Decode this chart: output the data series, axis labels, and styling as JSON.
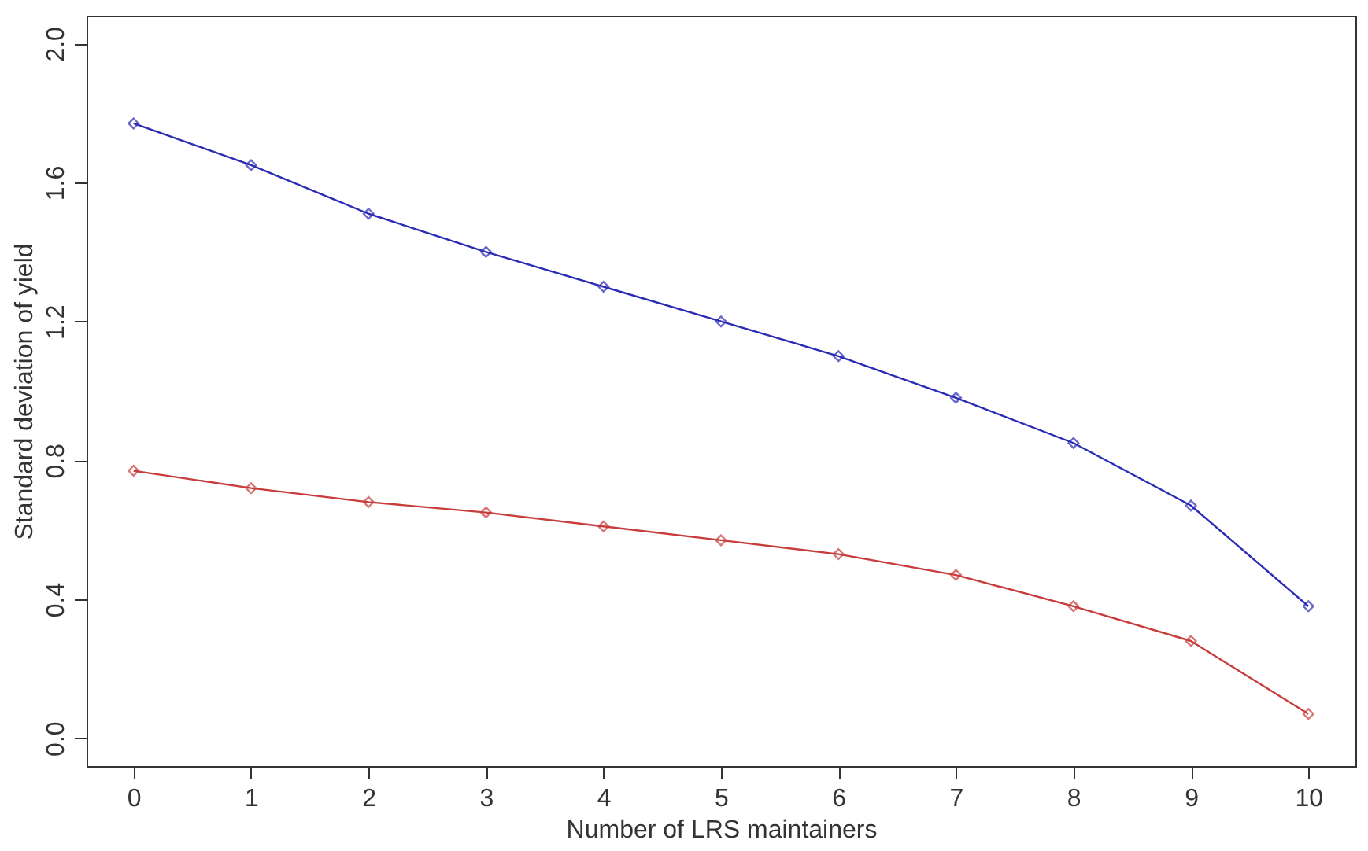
{
  "chart_data": {
    "type": "line",
    "xlabel": "Number of LRS maintainers",
    "ylabel": "Standard deviation of yield",
    "x": [
      0,
      1,
      2,
      3,
      4,
      5,
      6,
      7,
      8,
      9,
      10
    ],
    "series": [
      {
        "color": "#2b2bb5",
        "values": [
          1.77,
          1.65,
          1.51,
          1.4,
          1.3,
          1.2,
          1.1,
          0.98,
          0.85,
          0.67,
          0.38
        ]
      },
      {
        "color": "#c83c3c",
        "values": [
          0.77,
          0.72,
          0.68,
          0.65,
          0.61,
          0.57,
          0.53,
          0.47,
          0.38,
          0.28,
          0.07
        ]
      }
    ],
    "xlim": [
      -0.4,
      10.4
    ],
    "xticks": [
      0,
      1,
      2,
      3,
      4,
      5,
      6,
      7,
      8,
      9,
      10
    ],
    "ylim": [
      -0.08,
      2.08
    ],
    "yticks": [
      {
        "value": 0,
        "label": "0.0"
      },
      0.4,
      0.8,
      1.2,
      1.6,
      {
        "value": 2,
        "label": "2.0"
      }
    ],
    "grid": false,
    "legend": false,
    "marker": "diamond",
    "line_style": "solid"
  }
}
